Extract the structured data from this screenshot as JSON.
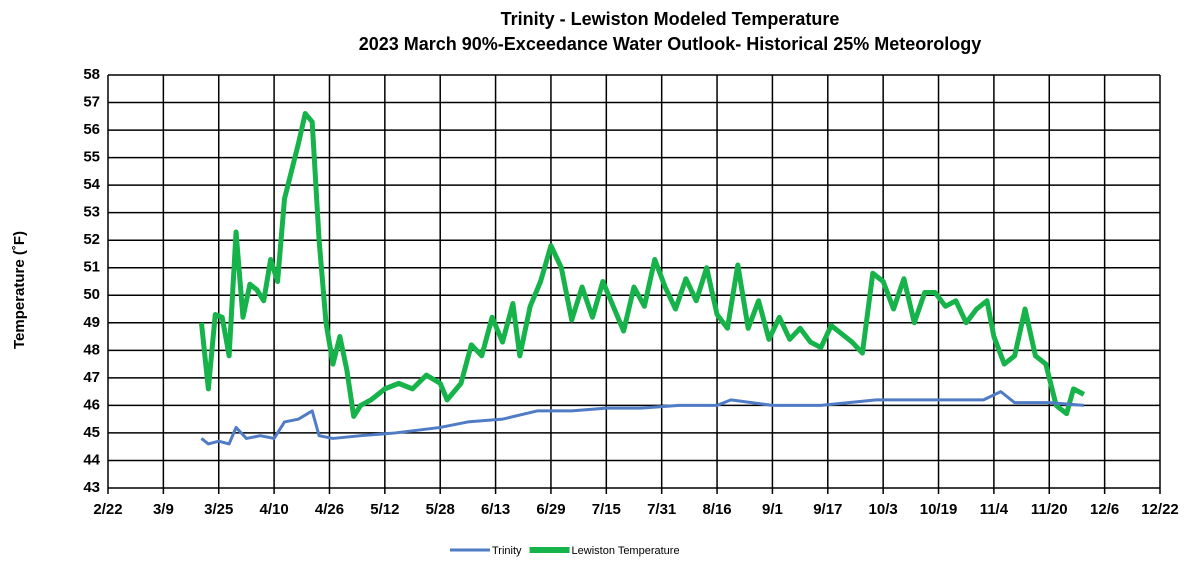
{
  "chart_data": {
    "type": "line",
    "title": "Trinity - Lewiston Modeled Temperature",
    "subtitle": "2023 March 90%-Exceedance Water Outlook- Historical 25% Meteorology",
    "y_label": "Temperature (˚F)",
    "xlim": [
      "2/22",
      "12/22"
    ],
    "xticks": [
      "2/22",
      "3/9",
      "3/25",
      "4/10",
      "4/26",
      "5/12",
      "5/28",
      "6/13",
      "6/29",
      "7/15",
      "7/31",
      "8/16",
      "9/1",
      "9/17",
      "10/3",
      "10/19",
      "11/4",
      "11/20",
      "12/6",
      "12/22"
    ],
    "ylim": [
      43,
      58
    ],
    "yticks": [
      43,
      44,
      45,
      46,
      47,
      48,
      49,
      50,
      51,
      52,
      53,
      54,
      55,
      56,
      57,
      58
    ],
    "grid": true,
    "legend": "bottom",
    "series": [
      {
        "name": "Trinity",
        "color": "#4f7cc4",
        "x": [
          "3/20",
          "3/22",
          "3/25",
          "3/28",
          "3/30",
          "4/2",
          "4/6",
          "4/10",
          "4/13",
          "4/17",
          "4/21",
          "4/23",
          "4/27",
          "5/5",
          "5/15",
          "5/28",
          "6/5",
          "6/15",
          "6/25",
          "7/5",
          "7/15",
          "7/25",
          "8/5",
          "8/16",
          "8/20",
          "9/1",
          "9/15",
          "10/1",
          "10/15",
          "11/1",
          "11/6",
          "11/10",
          "11/20",
          "11/30"
        ],
        "values": [
          44.8,
          44.6,
          44.7,
          44.6,
          45.2,
          44.8,
          44.9,
          44.8,
          45.4,
          45.5,
          45.8,
          44.9,
          44.8,
          44.9,
          45,
          45.2,
          45.4,
          45.5,
          45.8,
          45.8,
          45.9,
          45.9,
          46,
          46,
          46.2,
          46,
          46,
          46.2,
          46.2,
          46.2,
          46.5,
          46.1,
          46.1,
          46
        ]
      },
      {
        "name": "Lewiston Temperature",
        "color": "#16b34a",
        "x": [
          "3/20",
          "3/22",
          "3/24",
          "3/26",
          "3/28",
          "3/30",
          "4/1",
          "4/3",
          "4/5",
          "4/7",
          "4/9",
          "4/11",
          "4/13",
          "4/15",
          "4/17",
          "4/19",
          "4/21",
          "4/23",
          "4/25",
          "4/27",
          "4/29",
          "5/1",
          "5/3",
          "5/5",
          "5/8",
          "5/12",
          "5/16",
          "5/20",
          "5/24",
          "5/28",
          "5/30",
          "6/3",
          "6/6",
          "6/9",
          "6/12",
          "6/15",
          "6/18",
          "6/20",
          "6/23",
          "6/26",
          "6/29",
          "7/2",
          "7/5",
          "7/8",
          "7/11",
          "7/14",
          "7/17",
          "7/20",
          "7/23",
          "7/26",
          "7/29",
          "8/1",
          "8/4",
          "8/7",
          "8/10",
          "8/13",
          "8/16",
          "8/19",
          "8/22",
          "8/25",
          "8/28",
          "8/31",
          "9/3",
          "9/6",
          "9/9",
          "9/12",
          "9/15",
          "9/18",
          "9/21",
          "9/24",
          "9/27",
          "9/30",
          "10/3",
          "10/6",
          "10/9",
          "10/12",
          "10/15",
          "10/18",
          "10/21",
          "10/24",
          "10/27",
          "10/30",
          "11/2",
          "11/4",
          "11/7",
          "11/10",
          "11/13",
          "11/16",
          "11/19",
          "11/22",
          "11/25",
          "11/27",
          "11/30"
        ],
        "values": [
          49,
          46.6,
          49.3,
          49.2,
          47.8,
          52.3,
          49.2,
          50.4,
          50.2,
          49.8,
          51.3,
          50.5,
          53.5,
          54.5,
          55.5,
          56.6,
          56.3,
          52,
          49,
          47.5,
          48.5,
          47.3,
          45.6,
          46,
          46.2,
          46.6,
          46.8,
          46.6,
          47.1,
          46.8,
          46.2,
          46.8,
          48.2,
          47.8,
          49.2,
          48.3,
          49.7,
          47.8,
          49.6,
          50.5,
          51.8,
          51,
          49.1,
          50.3,
          49.2,
          50.5,
          49.6,
          48.7,
          50.3,
          49.6,
          51.3,
          50.3,
          49.5,
          50.6,
          49.8,
          51,
          49.3,
          48.8,
          51.1,
          48.8,
          49.8,
          48.4,
          49.2,
          48.4,
          48.8,
          48.3,
          48.1,
          48.9,
          48.6,
          48.3,
          47.9,
          50.8,
          50.5,
          49.5,
          50.6,
          49,
          50.1,
          50.1,
          49.6,
          49.8,
          49,
          49.5,
          49.8,
          48.5,
          47.5,
          47.8,
          49.5,
          47.8,
          47.5,
          46,
          45.7,
          46.6,
          46.4
        ]
      }
    ]
  }
}
